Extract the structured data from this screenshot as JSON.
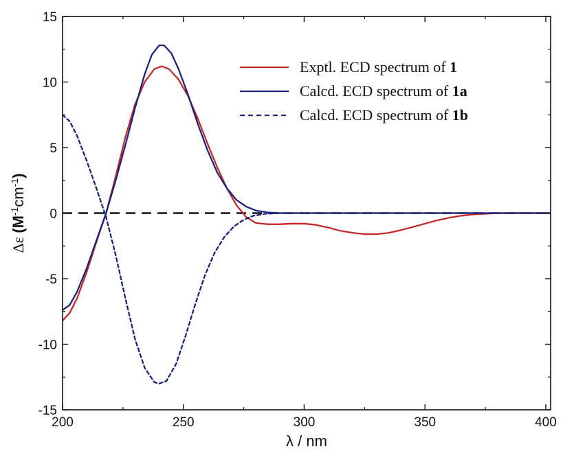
{
  "chart_data": {
    "type": "line",
    "title": "",
    "xlabel": "λ / nm",
    "ylabel_main": "Δε",
    "ylabel_unit": "(M-1cm-1)",
    "ylabel_parts": [
      "(M",
      "-1",
      "cm",
      "-1",
      ")"
    ],
    "xlim": [
      200,
      402
    ],
    "ylim": [
      -15,
      15
    ],
    "x_ticks": [
      200,
      250,
      300,
      350,
      400
    ],
    "y_ticks": [
      -15,
      -10,
      -5,
      0,
      5,
      10,
      15
    ],
    "x_tick_labels": [
      "200",
      "250",
      "300",
      "350",
      "400"
    ],
    "y_tick_labels": [
      "-15",
      "-10",
      "-5",
      "0",
      "5",
      "10",
      "15"
    ],
    "grid": false,
    "legend_position": "top-right",
    "zero_line": {
      "y": 0,
      "style": "dashed",
      "color": "#111111"
    },
    "series": [
      {
        "name": "Exptl. ECD spectrum of 1",
        "legend_text": "Exptl. ECD spectrum of ",
        "legend_bold": "1",
        "color": "#c62828",
        "style": "solid",
        "points": [
          [
            200,
            -8.2
          ],
          [
            203,
            -7.6
          ],
          [
            206,
            -6.5
          ],
          [
            210,
            -4.5
          ],
          [
            214,
            -2.2
          ],
          [
            218,
            0
          ],
          [
            222,
            2.8
          ],
          [
            226,
            5.8
          ],
          [
            230,
            8.3
          ],
          [
            234,
            10.0
          ],
          [
            238,
            11.0
          ],
          [
            241,
            11.2
          ],
          [
            244,
            11.0
          ],
          [
            248,
            10.2
          ],
          [
            252,
            8.9
          ],
          [
            256,
            7.2
          ],
          [
            260,
            5.3
          ],
          [
            264,
            3.5
          ],
          [
            268,
            1.9
          ],
          [
            272,
            0.6
          ],
          [
            276,
            -0.3
          ],
          [
            280,
            -0.75
          ],
          [
            285,
            -0.85
          ],
          [
            290,
            -0.85
          ],
          [
            295,
            -0.8
          ],
          [
            300,
            -0.8
          ],
          [
            305,
            -0.9
          ],
          [
            310,
            -1.1
          ],
          [
            315,
            -1.35
          ],
          [
            320,
            -1.5
          ],
          [
            325,
            -1.6
          ],
          [
            330,
            -1.6
          ],
          [
            335,
            -1.5
          ],
          [
            340,
            -1.3
          ],
          [
            345,
            -1.05
          ],
          [
            350,
            -0.8
          ],
          [
            355,
            -0.55
          ],
          [
            360,
            -0.35
          ],
          [
            365,
            -0.2
          ],
          [
            370,
            -0.1
          ],
          [
            375,
            -0.05
          ],
          [
            380,
            0
          ],
          [
            390,
            0
          ],
          [
            402,
            0
          ]
        ]
      },
      {
        "name": "Calcd. ECD spectrum of 1a",
        "legend_text": "Calcd. ECD spectrum of ",
        "legend_bold": "1a",
        "color": "#1a237e",
        "style": "solid",
        "points": [
          [
            200,
            -7.4
          ],
          [
            203,
            -7.0
          ],
          [
            206,
            -6.0
          ],
          [
            210,
            -4.2
          ],
          [
            214,
            -2.1
          ],
          [
            218,
            0
          ],
          [
            222,
            2.5
          ],
          [
            226,
            5.2
          ],
          [
            230,
            8.0
          ],
          [
            234,
            10.6
          ],
          [
            237,
            12.1
          ],
          [
            240,
            12.8
          ],
          [
            242,
            12.8
          ],
          [
            245,
            12.2
          ],
          [
            248,
            11.0
          ],
          [
            252,
            9.0
          ],
          [
            256,
            6.8
          ],
          [
            260,
            4.8
          ],
          [
            264,
            3.1
          ],
          [
            268,
            1.9
          ],
          [
            272,
            1.0
          ],
          [
            276,
            0.5
          ],
          [
            280,
            0.2
          ],
          [
            285,
            0.05
          ],
          [
            290,
            0
          ],
          [
            300,
            0
          ],
          [
            320,
            0
          ],
          [
            350,
            0
          ],
          [
            380,
            0
          ],
          [
            402,
            0
          ]
        ]
      },
      {
        "name": "Calcd. ECD spectrum of 1b",
        "legend_text": "Calcd. ECD spectrum of ",
        "legend_bold": "1b",
        "color": "#1a237e",
        "style": "dashed",
        "points": [
          [
            200,
            7.5
          ],
          [
            203,
            7.0
          ],
          [
            206,
            5.9
          ],
          [
            210,
            4.0
          ],
          [
            214,
            1.9
          ],
          [
            218,
            -0.3
          ],
          [
            222,
            -3.2
          ],
          [
            226,
            -6.5
          ],
          [
            230,
            -9.6
          ],
          [
            234,
            -11.8
          ],
          [
            238,
            -12.9
          ],
          [
            240,
            -13.0
          ],
          [
            243,
            -12.8
          ],
          [
            247,
            -11.5
          ],
          [
            251,
            -9.3
          ],
          [
            255,
            -6.9
          ],
          [
            259,
            -4.7
          ],
          [
            263,
            -3.0
          ],
          [
            267,
            -1.8
          ],
          [
            271,
            -1.0
          ],
          [
            275,
            -0.5
          ],
          [
            279,
            -0.2
          ],
          [
            284,
            -0.05
          ],
          [
            290,
            0
          ],
          [
            300,
            0
          ],
          [
            320,
            0
          ],
          [
            350,
            0
          ],
          [
            380,
            0
          ],
          [
            402,
            0
          ]
        ]
      }
    ]
  }
}
